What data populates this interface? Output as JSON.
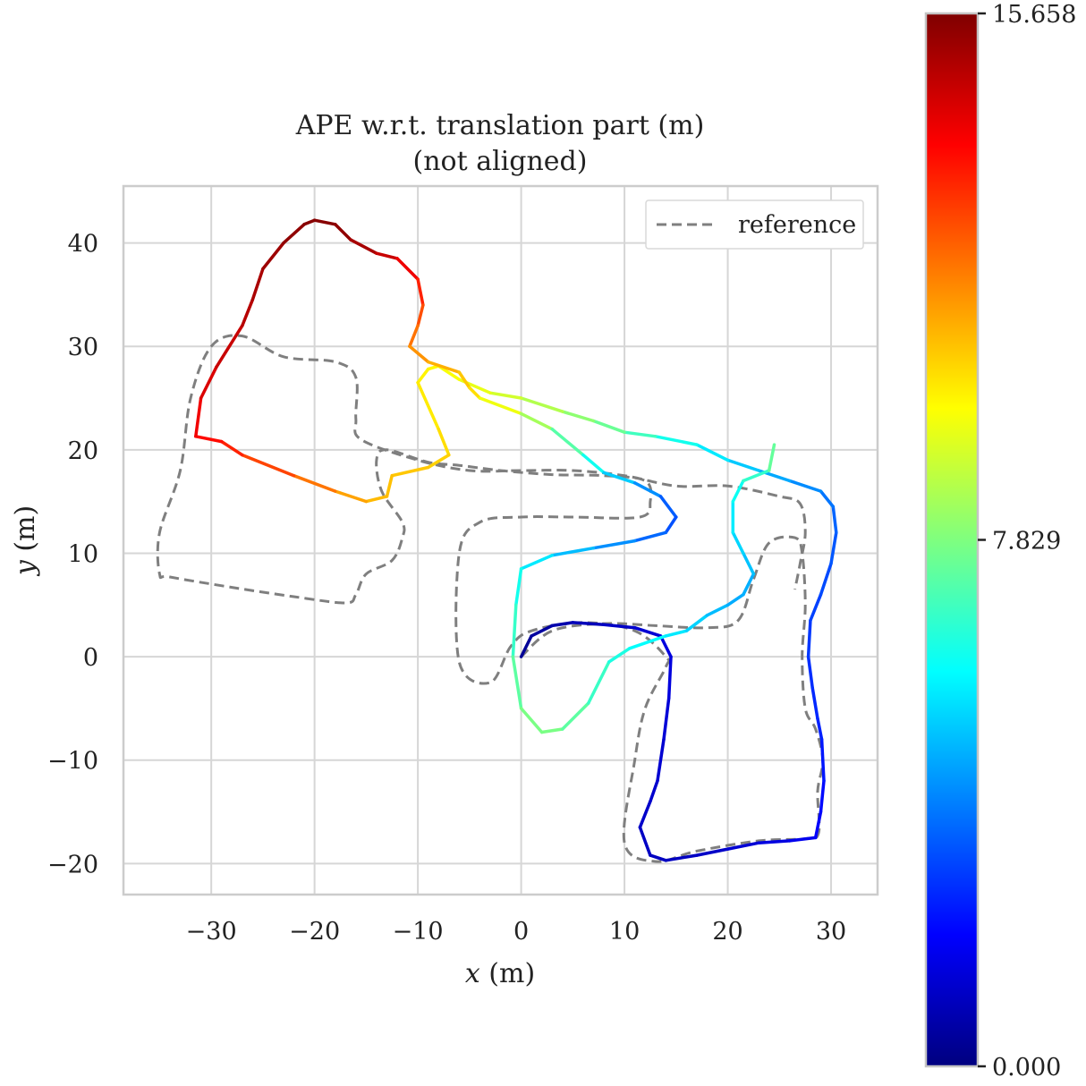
{
  "chart_data": {
    "type": "line",
    "title_line1": "APE w.r.t. translation part (m)",
    "title_line2": "(not aligned)",
    "xlabel_var": "x",
    "xlabel_unit": "(m)",
    "ylabel_var": "y",
    "ylabel_unit": "(m)",
    "xlim": [
      -38.5,
      34.5
    ],
    "ylim": [
      -23,
      45.5
    ],
    "x_ticks": [
      -30,
      -20,
      -10,
      0,
      10,
      20,
      30
    ],
    "x_tick_labels": [
      "−30",
      "−20",
      "−10",
      "0",
      "10",
      "20",
      "30"
    ],
    "y_ticks": [
      -20,
      -10,
      0,
      10,
      20,
      30,
      40
    ],
    "y_tick_labels": [
      "−20",
      "−10",
      "0",
      "10",
      "20",
      "30",
      "40"
    ],
    "grid": true,
    "legend": {
      "placement": "top-right",
      "label": "reference"
    },
    "colorbar": {
      "min": 0.0,
      "max": 15.658,
      "ticks": [
        0.0,
        7.829,
        15.658
      ],
      "tick_labels": [
        "0.000",
        "7.829",
        "15.658"
      ],
      "colormap": "jet"
    },
    "colors": {
      "reference": "#7f7f7f",
      "grid": "#d6d6d6",
      "frame": "#cccccc"
    },
    "reference": [
      [
        0,
        0
      ],
      [
        3,
        2.5
      ],
      [
        8,
        3.2
      ],
      [
        13,
        3.0
      ],
      [
        18,
        2.8
      ],
      [
        21,
        3.5
      ],
      [
        22.5,
        7.5
      ],
      [
        24,
        11
      ],
      [
        26.5,
        11.5
      ],
      [
        27.2,
        10
      ],
      [
        27.5,
        5
      ],
      [
        27.2,
        0
      ],
      [
        27.5,
        -5
      ],
      [
        28.5,
        -7
      ],
      [
        29.2,
        -10
      ],
      [
        28.7,
        -13
      ],
      [
        28.8,
        -17
      ],
      [
        27.5,
        -17.6
      ],
      [
        23,
        -17.8
      ],
      [
        17,
        -18.8
      ],
      [
        13,
        -19.8
      ],
      [
        10,
        -18
      ],
      [
        11,
        -10
      ],
      [
        12,
        -5
      ],
      [
        14,
        -1
      ],
      [
        14,
        0
      ],
      [
        11,
        2.5
      ],
      [
        6,
        3.3
      ],
      [
        1,
        2.5
      ],
      [
        -1,
        1
      ],
      [
        -3,
        -2.5
      ],
      [
        -6,
        -0.5
      ],
      [
        -6,
        10
      ],
      [
        -4,
        13
      ],
      [
        0,
        13.5
      ],
      [
        5,
        13.5
      ],
      [
        11.5,
        13.5
      ],
      [
        12.5,
        15
      ],
      [
        12,
        17
      ],
      [
        8,
        17.5
      ],
      [
        3,
        17.6
      ],
      [
        -2,
        18
      ],
      [
        -6,
        18.5
      ],
      [
        -9,
        18.8
      ],
      [
        -13,
        20
      ],
      [
        -14,
        19
      ],
      [
        -13.5,
        16
      ],
      [
        -11.5,
        13
      ],
      [
        -11.5,
        11.5
      ],
      [
        -12.5,
        9.3
      ],
      [
        -15,
        8
      ],
      [
        -16,
        6
      ],
      [
        -17,
        5.2
      ],
      [
        -22,
        5.8
      ],
      [
        -28,
        6.7
      ],
      [
        -34,
        7.7
      ],
      [
        -35,
        8
      ],
      [
        -35,
        12
      ],
      [
        -33,
        18
      ],
      [
        -32,
        25
      ],
      [
        -30,
        30
      ],
      [
        -27,
        31
      ],
      [
        -23,
        29
      ],
      [
        -18,
        28.5
      ],
      [
        -16,
        27
      ],
      [
        -16,
        23
      ],
      [
        -15.5,
        21
      ],
      [
        -10,
        19
      ],
      [
        -5,
        18
      ],
      [
        0,
        18
      ],
      [
        5,
        18
      ],
      [
        10,
        17.5
      ],
      [
        15,
        16.5
      ],
      [
        20,
        16.5
      ],
      [
        25,
        15.5
      ],
      [
        27,
        14.8
      ],
      [
        27.5,
        12
      ],
      [
        27,
        9
      ],
      [
        26.5,
        6.5
      ]
    ],
    "estimate": [
      [
        0,
        0,
        0.3
      ],
      [
        1,
        2,
        0.4
      ],
      [
        3,
        3,
        0.6
      ],
      [
        5,
        3.3,
        0.8
      ],
      [
        8,
        3.1,
        1.0
      ],
      [
        11,
        2.8,
        1.2
      ],
      [
        13.5,
        2,
        1.4
      ],
      [
        14.5,
        0,
        1.5
      ],
      [
        14.3,
        -4,
        1.4
      ],
      [
        13.8,
        -8,
        1.3
      ],
      [
        13.2,
        -12,
        1.2
      ],
      [
        12.5,
        -14,
        1.2
      ],
      [
        11.5,
        -16.5,
        1.1
      ],
      [
        12.5,
        -19.2,
        1.0
      ],
      [
        14,
        -19.7,
        1.0
      ],
      [
        17,
        -19.2,
        1.0
      ],
      [
        20,
        -18.6,
        1.2
      ],
      [
        23,
        -18,
        1.4
      ],
      [
        26,
        -17.8,
        1.6
      ],
      [
        28.5,
        -17.5,
        1.8
      ],
      [
        29,
        -15,
        2.0
      ],
      [
        29.3,
        -12,
        2.2
      ],
      [
        29.1,
        -8,
        2.4
      ],
      [
        28.7,
        -6,
        2.5
      ],
      [
        28.2,
        -3,
        2.6
      ],
      [
        27.8,
        0,
        2.7
      ],
      [
        28,
        3.5,
        2.9
      ],
      [
        29,
        6,
        3.0
      ],
      [
        30,
        9,
        3.2
      ],
      [
        30.5,
        12,
        3.4
      ],
      [
        30.2,
        14.5,
        3.6
      ],
      [
        29,
        16,
        3.9
      ],
      [
        26,
        17,
        4.3
      ],
      [
        23,
        18,
        4.8
      ],
      [
        20,
        19,
        5.3
      ],
      [
        17,
        20.5,
        5.8
      ],
      [
        13,
        21.3,
        6.5
      ],
      [
        10,
        21.7,
        7.2
      ],
      [
        7,
        22.8,
        7.8
      ],
      [
        4,
        23.7,
        8.3
      ],
      [
        0,
        25,
        8.9
      ],
      [
        -3,
        25.5,
        9.3
      ],
      [
        -6,
        26.8,
        9.6
      ],
      [
        -8,
        28.1,
        9.8
      ],
      [
        -9,
        27.8,
        9.9
      ],
      [
        -10,
        26.5,
        10.0
      ],
      [
        -8,
        22,
        10.2
      ],
      [
        -7,
        19.5,
        10.4
      ],
      [
        -9,
        18.3,
        10.6
      ],
      [
        -12.5,
        17.5,
        10.7
      ],
      [
        -13,
        15.5,
        10.8
      ],
      [
        -15,
        15,
        10.9
      ],
      [
        -18,
        16,
        11.5
      ],
      [
        -22,
        17.5,
        12.3
      ],
      [
        -27,
        19.5,
        13.0
      ],
      [
        -29,
        20.8,
        13.4
      ],
      [
        -31.5,
        21.3,
        13.7
      ],
      [
        -31,
        25,
        14.1
      ],
      [
        -29.5,
        28,
        14.4
      ],
      [
        -27,
        32,
        14.7
      ],
      [
        -26,
        34.5,
        14.9
      ],
      [
        -25,
        37.5,
        15.1
      ],
      [
        -23,
        40,
        15.3
      ],
      [
        -21,
        41.8,
        15.5
      ],
      [
        -20,
        42.2,
        15.6
      ],
      [
        -18,
        41.8,
        15.5
      ],
      [
        -16.5,
        40.3,
        15.3
      ],
      [
        -14,
        39,
        14.8
      ],
      [
        -12,
        38.5,
        14.3
      ],
      [
        -10,
        36.5,
        13.6
      ],
      [
        -9.5,
        34,
        12.8
      ],
      [
        -10,
        32,
        12.2
      ],
      [
        -10.8,
        30,
        11.7
      ],
      [
        -9,
        28.5,
        11.2
      ],
      [
        -6,
        27.5,
        10.8
      ],
      [
        -5,
        26,
        10.5
      ],
      [
        -4,
        25,
        10.1
      ],
      [
        0,
        23.5,
        9.0
      ],
      [
        3,
        22,
        7.8
      ],
      [
        6,
        19.5,
        6.6
      ],
      [
        8,
        17.8,
        5.6
      ],
      [
        11,
        16.8,
        4.6
      ],
      [
        13.5,
        15.5,
        3.7
      ],
      [
        15,
        13.5,
        3.1
      ],
      [
        14,
        12,
        3.3
      ],
      [
        11,
        11.2,
        3.8
      ],
      [
        7,
        10.5,
        4.5
      ],
      [
        3,
        9.8,
        5.2
      ],
      [
        0,
        8.5,
        5.9
      ],
      [
        -0.5,
        5,
        6.4
      ],
      [
        -0.8,
        0,
        7.0
      ],
      [
        0,
        -5,
        7.6
      ],
      [
        2,
        -7.3,
        7.9
      ],
      [
        4,
        -7,
        7.6
      ],
      [
        6.5,
        -4.5,
        7.0
      ],
      [
        8.5,
        -0.5,
        6.5
      ],
      [
        10.5,
        0.8,
        6.1
      ],
      [
        14,
        2,
        5.7
      ],
      [
        16,
        2.5,
        5.4
      ],
      [
        18,
        4,
        5.0
      ],
      [
        20,
        5,
        4.7
      ],
      [
        21.5,
        6,
        4.5
      ],
      [
        22.5,
        8,
        4.8
      ],
      [
        21.5,
        10,
        5.1
      ],
      [
        20.5,
        12,
        5.4
      ],
      [
        20.5,
        15,
        5.8
      ],
      [
        21.5,
        17,
        6.3
      ],
      [
        24,
        18,
        7.0
      ],
      [
        24.5,
        20.5,
        7.8
      ]
    ]
  }
}
